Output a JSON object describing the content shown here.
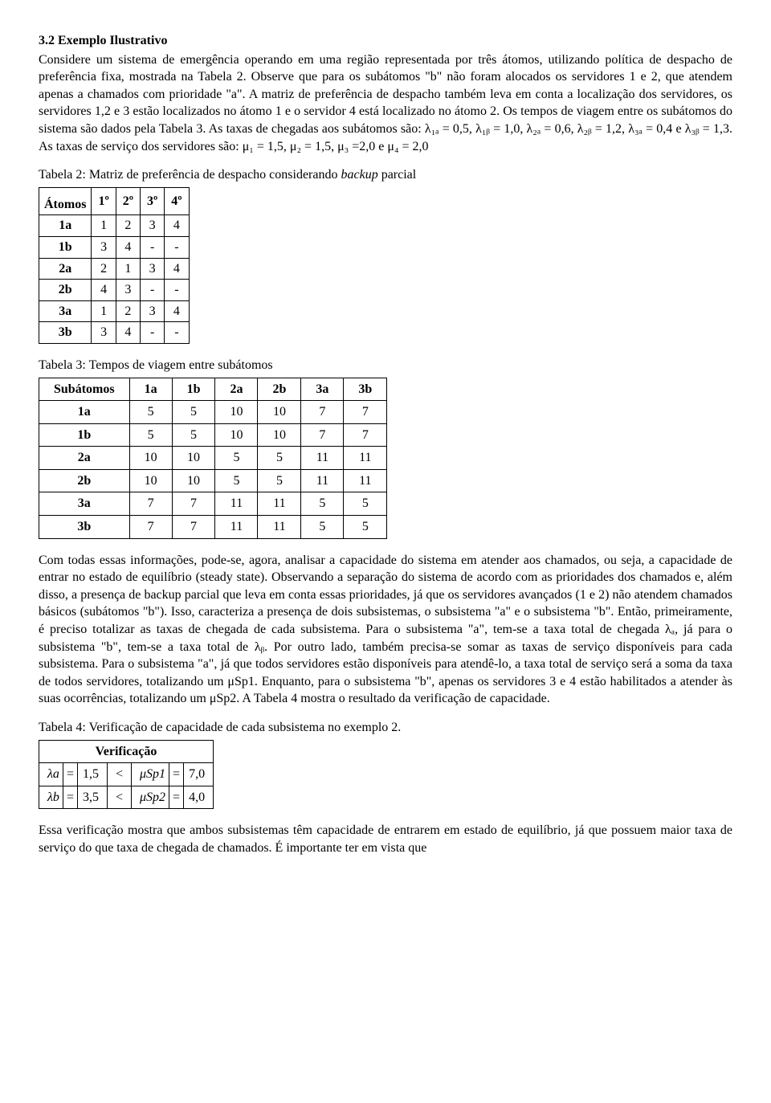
{
  "section": {
    "heading": "3.2 Exemplo Ilustrativo",
    "para1": "Considere um sistema de emergência operando em uma região representada por três átomos, utilizando política de despacho de preferência fixa, mostrada na Tabela 2. Observe que para os subátomos \"b\" não foram alocados os servidores 1 e 2, que atendem apenas a chamados com prioridade \"a\". A matriz de preferência de despacho também leva em conta a localização dos servidores, os servidores 1,2 e 3 estão localizados no átomo 1 e o servidor 4 está localizado no átomo 2. Os tempos de viagem entre os subátomos do sistema são dados pela Tabela 3. As taxas de chegadas aos subátomos são: λ₁ₐ = 0,5, λ₁ᵦ = 1,0, λ₂ₐ = 0,6, λ₂ᵦ = 1,2, λ₃ₐ = 0,4 e λ₃ᵦ = 1,3. As taxas de serviço dos servidores são: μ₁ = 1,5, μ₂ = 1,5, μ₃ =2,0 e μ₄ = 2,0"
  },
  "table2": {
    "caption": "Tabela 2: Matriz de preferência de despacho considerando backup parcial",
    "atoms_label": "Átomos",
    "col_heads": [
      "1º",
      "2º",
      "3º",
      "4º"
    ],
    "rows": [
      {
        "label": "1a",
        "cells": [
          "1",
          "2",
          "3",
          "4"
        ]
      },
      {
        "label": "1b",
        "cells": [
          "3",
          "4",
          "-",
          "-"
        ]
      },
      {
        "label": "2a",
        "cells": [
          "2",
          "1",
          "3",
          "4"
        ]
      },
      {
        "label": "2b",
        "cells": [
          "4",
          "3",
          "-",
          "-"
        ]
      },
      {
        "label": "3a",
        "cells": [
          "1",
          "2",
          "3",
          "4"
        ]
      },
      {
        "label": "3b",
        "cells": [
          "3",
          "4",
          "-",
          "-"
        ]
      }
    ]
  },
  "table3": {
    "caption": "Tabela 3: Tempos de viagem entre subátomos",
    "header": [
      "Subátomos",
      "1a",
      "1b",
      "2a",
      "2b",
      "3a",
      "3b"
    ],
    "rows": [
      {
        "label": "1a",
        "cells": [
          "5",
          "5",
          "10",
          "10",
          "7",
          "7"
        ]
      },
      {
        "label": "1b",
        "cells": [
          "5",
          "5",
          "10",
          "10",
          "7",
          "7"
        ]
      },
      {
        "label": "2a",
        "cells": [
          "10",
          "10",
          "5",
          "5",
          "11",
          "11"
        ]
      },
      {
        "label": "2b",
        "cells": [
          "10",
          "10",
          "5",
          "5",
          "11",
          "11"
        ]
      },
      {
        "label": "3a",
        "cells": [
          "7",
          "7",
          "11",
          "11",
          "5",
          "5"
        ]
      },
      {
        "label": "3b",
        "cells": [
          "7",
          "7",
          "11",
          "11",
          "5",
          "5"
        ]
      }
    ]
  },
  "para2": "Com todas essas informações, pode-se, agora, analisar a capacidade do sistema em atender aos chamados, ou seja, a capacidade de entrar no estado de equilíbrio (steady state). Observando a separação do sistema de acordo com as prioridades dos chamados e, além disso, a presença de backup parcial que leva em conta essas prioridades, já que os servidores avançados (1 e 2) não atendem chamados básicos (subátomos \"b\"). Isso, caracteriza a presença de dois subsistemas, o subsistema \"a\" e o subsistema \"b\". Então, primeiramente, é preciso totalizar as taxas de chegada de cada subsistema. Para o subsistema \"a\", tem-se a taxa total de chegada λₐ, já para o subsistema \"b\", tem-se a taxa total de λᵦ. Por outro lado, também precisa-se somar as taxas de serviço disponíveis para cada subsistema. Para o subsistema \"a\", já que todos servidores estão disponíveis para atendê-lo, a taxa total de serviço será a soma da taxa de todos servidores, totalizando um μSp1. Enquanto, para o subsistema \"b\", apenas os servidores 3 e 4 estão habilitados a atender às suas ocorrências, totalizando um μSp2. A Tabela 4 mostra o resultado da verificação de capacidade.",
  "table4": {
    "caption": "Tabela 4: Verificação de capacidade de cada subsistema no exemplo 2.",
    "header": "Verificação",
    "rows": [
      {
        "lhs_lbl": "λa",
        "eq1": "=",
        "lhs_val": "1,5",
        "cmp": "<",
        "rhs_lbl": "μSp1",
        "eq2": "=",
        "rhs_val": "7,0"
      },
      {
        "lhs_lbl": "λb",
        "eq1": "=",
        "lhs_val": "3,5",
        "cmp": "<",
        "rhs_lbl": "μSp2",
        "eq2": "=",
        "rhs_val": "4,0"
      }
    ]
  },
  "para3": "Essa verificação mostra que ambos subsistemas têm capacidade de entrarem em estado de equilíbrio, já que possuem maior taxa de serviço do que taxa de chegada de chamados. É importante ter em vista que"
}
